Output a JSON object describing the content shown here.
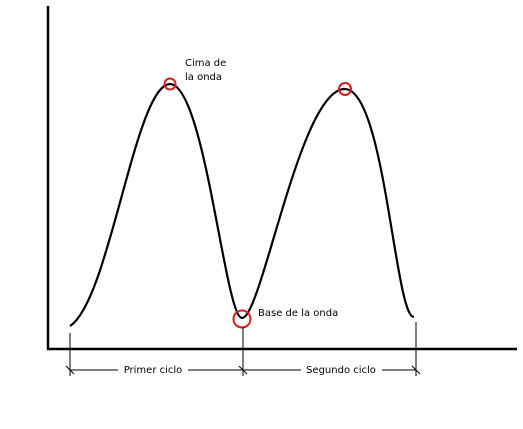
{
  "annotations": {
    "crest_line1": "Cima de",
    "crest_line2": "la onda",
    "trough": "Base de la onda"
  },
  "cycles": {
    "first": "Primer ciclo",
    "second": "Segundo ciclo"
  },
  "colors": {
    "line": "#000000",
    "marker": "#d62020"
  }
}
